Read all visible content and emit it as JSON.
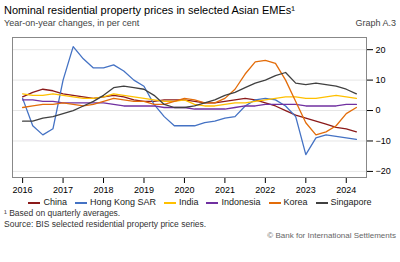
{
  "chart_data": {
    "type": "line",
    "title": "Nominal residential property prices in selected Asian EMEs¹",
    "subtitle": "Year-on-year changes, in per cent",
    "annotations": [
      "Graph A.3",
      "¹ Based on quarterly averages.",
      "Source: BIS selected residential property price series.",
      "© Bank for International Settlements"
    ],
    "x": [
      2016.0,
      2016.25,
      2016.5,
      2016.75,
      2017.0,
      2017.25,
      2017.5,
      2017.75,
      2018.0,
      2018.25,
      2018.5,
      2018.75,
      2019.0,
      2019.25,
      2019.5,
      2019.75,
      2020.0,
      2020.25,
      2020.5,
      2020.75,
      2021.0,
      2021.25,
      2021.5,
      2021.75,
      2022.0,
      2022.25,
      2022.5,
      2022.75,
      2023.0,
      2023.25,
      2023.5,
      2023.75,
      2024.0,
      2024.25
    ],
    "series": [
      {
        "name": "China",
        "color": "#8B1A1A",
        "values": [
          4.5,
          6.0,
          7.0,
          6.5,
          5.5,
          5.0,
          4.5,
          4.0,
          4.5,
          5.0,
          4.5,
          3.5,
          3.0,
          3.0,
          3.5,
          3.5,
          3.5,
          3.0,
          2.5,
          2.5,
          3.0,
          3.5,
          4.0,
          3.5,
          2.5,
          1.5,
          0.0,
          -1.5,
          -2.5,
          -3.5,
          -4.5,
          -5.5,
          -6.0,
          -7.0
        ]
      },
      {
        "name": "Hong Kong SAR",
        "color": "#4472C4",
        "values": [
          4.0,
          -5.0,
          -8.0,
          -6.0,
          10.0,
          21.0,
          17.0,
          14.0,
          14.0,
          15.0,
          13.0,
          10.0,
          8.0,
          2.0,
          -2.0,
          -5.0,
          -5.0,
          -5.0,
          -4.0,
          -3.5,
          -2.5,
          -2.0,
          1.5,
          3.5,
          4.0,
          3.5,
          1.5,
          -2.0,
          -14.5,
          -9.0,
          -8.0,
          -8.5,
          -9.0,
          -9.5
        ]
      },
      {
        "name": "India",
        "color": "#FFC000",
        "values": [
          5.5,
          5.0,
          5.0,
          5.5,
          5.0,
          4.5,
          4.0,
          4.0,
          4.5,
          5.5,
          5.0,
          4.5,
          4.0,
          3.5,
          3.0,
          3.0,
          3.5,
          2.0,
          1.5,
          1.5,
          2.0,
          2.5,
          2.5,
          3.0,
          3.5,
          4.0,
          4.5,
          4.5,
          4.0,
          4.0,
          4.5,
          5.0,
          4.5,
          4.0
        ]
      },
      {
        "name": "Indonesia",
        "color": "#7030A0",
        "values": [
          3.5,
          3.5,
          3.0,
          3.0,
          2.5,
          2.5,
          2.5,
          2.5,
          2.5,
          2.0,
          1.5,
          1.5,
          1.5,
          1.5,
          1.0,
          1.0,
          1.0,
          0.5,
          0.5,
          0.5,
          0.5,
          1.0,
          1.5,
          1.5,
          2.0,
          2.0,
          2.0,
          2.0,
          1.5,
          1.5,
          1.5,
          1.5,
          2.0,
          2.0
        ]
      },
      {
        "name": "Korea",
        "color": "#E36C09",
        "values": [
          1.0,
          1.5,
          2.0,
          2.0,
          2.5,
          2.0,
          1.5,
          2.0,
          3.0,
          4.0,
          3.5,
          3.0,
          3.0,
          2.0,
          2.0,
          3.0,
          4.0,
          3.5,
          2.5,
          2.5,
          4.0,
          7.0,
          12.0,
          16.0,
          16.5,
          15.5,
          10.0,
          3.0,
          -4.0,
          -8.0,
          -7.0,
          -5.0,
          -1.0,
          1.0
        ]
      },
      {
        "name": "Singapore",
        "color": "#404040",
        "values": [
          -3.5,
          -3.5,
          -2.5,
          -2.0,
          -1.0,
          0.0,
          1.5,
          3.0,
          5.0,
          7.5,
          8.0,
          7.5,
          7.0,
          5.0,
          2.0,
          1.0,
          1.0,
          1.5,
          2.5,
          3.5,
          5.0,
          6.0,
          7.5,
          9.0,
          10.0,
          11.5,
          12.5,
          9.0,
          8.5,
          9.0,
          8.5,
          8.0,
          7.0,
          5.5
        ]
      }
    ],
    "xlim": [
      2015.75,
      2024.5
    ],
    "xticks": [
      2016,
      2017,
      2018,
      2019,
      2020,
      2021,
      2022,
      2023,
      2024
    ],
    "ylim": [
      -22,
      24
    ],
    "yticks": [
      -20,
      -10,
      0,
      10,
      20
    ],
    "grid": true,
    "legend": "bottom"
  }
}
